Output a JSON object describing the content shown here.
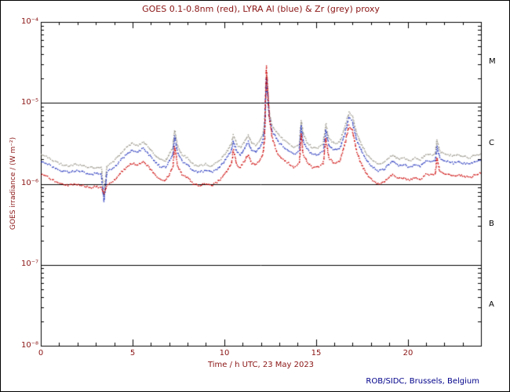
{
  "title": "GOES 0.1-0.8nm (red), LYRA Al (blue) & Zr (grey) proxy",
  "credit": "ROB/SIDC, Brussels, Belgium",
  "colors": {
    "text": "#8b1414",
    "credit": "#00008b",
    "frame": "#000000",
    "class_label": "#000000"
  },
  "axes": {
    "x_label": "Time / h UTC, 23 May 2023",
    "y_label": "GOES irradiance / (W m⁻²)",
    "x_ticks": [
      "0",
      "5",
      "10",
      "15",
      "20"
    ],
    "y_ticks": [
      "10⁻⁴",
      "10⁻⁵",
      "10⁻⁶",
      "10⁻⁷",
      "10⁻⁸"
    ],
    "class_labels": [
      "M",
      "C",
      "B",
      "A"
    ]
  },
  "chart_data": {
    "type": "scatter",
    "title": "GOES 0.1-0.8nm (red), LYRA Al (blue) & Zr (grey) proxy",
    "xlabel": "Time / h UTC, 23 May 2023",
    "ylabel": "GOES irradiance / (W m-2)",
    "xlim": [
      0,
      24
    ],
    "ylim": [
      1e-08,
      0.0001
    ],
    "ylog": true,
    "hlines": [
      1e-05,
      1e-06,
      1e-07
    ],
    "x_major_tick": 5,
    "x_minor_tick": 1,
    "x": [
      0.0,
      0.3,
      0.7,
      1.1,
      1.5,
      1.9,
      2.3,
      2.7,
      3.0,
      3.3,
      3.45,
      3.6,
      4.0,
      4.4,
      4.8,
      5.0,
      5.3,
      5.6,
      5.9,
      6.2,
      6.5,
      6.8,
      7.0,
      7.2,
      7.3,
      7.45,
      7.7,
      8.0,
      8.3,
      8.6,
      9.0,
      9.3,
      9.6,
      9.9,
      10.2,
      10.4,
      10.5,
      10.7,
      10.9,
      11.1,
      11.3,
      11.5,
      11.7,
      11.9,
      12.1,
      12.2,
      12.3,
      12.45,
      12.6,
      12.9,
      13.2,
      13.5,
      13.8,
      14.1,
      14.2,
      14.3,
      14.5,
      14.8,
      15.1,
      15.4,
      15.55,
      15.7,
      16.0,
      16.3,
      16.6,
      16.8,
      17.0,
      17.2,
      17.5,
      17.8,
      18.1,
      18.4,
      18.7,
      19.0,
      19.2,
      19.5,
      19.8,
      20.1,
      20.4,
      20.7,
      21.0,
      21.5,
      21.6,
      21.75,
      21.95,
      22.2,
      22.5,
      22.8,
      23.0,
      23.4,
      23.7,
      24.0
    ],
    "series": [
      {
        "name": "GOES 0.1-0.8nm",
        "color": "#cc0000",
        "values": [
          1.3e-06,
          1.25e-06,
          1.1e-06,
          1e-06,
          9.5e-07,
          1e-06,
          9.5e-07,
          9e-07,
          9.2e-07,
          9e-07,
          7.5e-07,
          9.5e-07,
          1.1e-06,
          1.4e-06,
          1.7e-06,
          1.8e-06,
          1.7e-06,
          1.9e-06,
          1.6e-06,
          1.3e-06,
          1.15e-06,
          1.1e-06,
          1.3e-06,
          1.6e-06,
          2.9e-06,
          1.7e-06,
          1.3e-06,
          1.2e-06,
          1e-06,
          9.5e-07,
          1e-06,
          9.5e-07,
          1.05e-06,
          1.2e-06,
          1.5e-06,
          1.8e-06,
          2.6e-06,
          1.7e-06,
          1.6e-06,
          1.9e-06,
          2.3e-06,
          1.8e-06,
          1.7e-06,
          1.9e-06,
          2.3e-06,
          3.5e-06,
          2.8e-05,
          7e-06,
          3.8e-06,
          2.4e-06,
          2e-06,
          1.8e-06,
          1.6e-06,
          1.8e-06,
          4.2e-06,
          2.4e-06,
          1.9e-06,
          1.6e-06,
          1.6e-06,
          1.8e-06,
          3.6e-06,
          2.1e-06,
          1.8e-06,
          1.9e-06,
          3.2e-06,
          5.2e-06,
          4.6e-06,
          2.6e-06,
          1.7e-06,
          1.3e-06,
          1.1e-06,
          1e-06,
          1.05e-06,
          1.2e-06,
          1.3e-06,
          1.15e-06,
          1.2e-06,
          1.1e-06,
          1.2e-06,
          1.15e-06,
          1.3e-06,
          1.3e-06,
          2.1e-06,
          1.45e-06,
          1.35e-06,
          1.3e-06,
          1.25e-06,
          1.3e-06,
          1.25e-06,
          1.2e-06,
          1.3e-06,
          1.35e-06
        ]
      },
      {
        "name": "LYRA Al",
        "color": "#2233bb",
        "values": [
          1.9e-06,
          1.8e-06,
          1.6e-06,
          1.45e-06,
          1.4e-06,
          1.45e-06,
          1.4e-06,
          1.3e-06,
          1.35e-06,
          1.3e-06,
          6e-07,
          1.4e-06,
          1.6e-06,
          2e-06,
          2.45e-06,
          2.6e-06,
          2.45e-06,
          2.75e-06,
          2.3e-06,
          1.9e-06,
          1.65e-06,
          1.6e-06,
          1.9e-06,
          2.3e-06,
          3.9e-06,
          2.45e-06,
          1.9e-06,
          1.75e-06,
          1.45e-06,
          1.4e-06,
          1.45e-06,
          1.4e-06,
          1.5e-06,
          1.75e-06,
          2.2e-06,
          2.6e-06,
          3.4e-06,
          2.45e-06,
          2.3e-06,
          2.75e-06,
          3.3e-06,
          2.6e-06,
          2.45e-06,
          2.75e-06,
          3.3e-06,
          4.8e-06,
          2e-05,
          6.8e-06,
          4.6e-06,
          3.4e-06,
          2.9e-06,
          2.6e-06,
          2.3e-06,
          2.6e-06,
          5.2e-06,
          3.4e-06,
          2.75e-06,
          2.3e-06,
          2.3e-06,
          2.6e-06,
          4.6e-06,
          3e-06,
          2.6e-06,
          2.75e-06,
          4.3e-06,
          6.6e-06,
          5.9e-06,
          3.6e-06,
          2.45e-06,
          1.9e-06,
          1.6e-06,
          1.45e-06,
          1.5e-06,
          1.75e-06,
          1.9e-06,
          1.65e-06,
          1.75e-06,
          1.6e-06,
          1.75e-06,
          1.65e-06,
          1.9e-06,
          1.9e-06,
          2.9e-06,
          2.1e-06,
          1.95e-06,
          1.9e-06,
          1.8e-06,
          1.9e-06,
          1.8e-06,
          1.75e-06,
          1.9e-06,
          1.95e-06
        ]
      },
      {
        "name": "LYRA Zr",
        "color": "#9a968a",
        "values": [
          2.3e-06,
          2.2e-06,
          1.9e-06,
          1.75e-06,
          1.65e-06,
          1.75e-06,
          1.65e-06,
          1.6e-06,
          1.6e-06,
          1.6e-06,
          7e-07,
          1.65e-06,
          1.9e-06,
          2.45e-06,
          3e-06,
          3.15e-06,
          3e-06,
          3.3e-06,
          2.8e-06,
          2.3e-06,
          2e-06,
          1.9e-06,
          2.3e-06,
          2.8e-06,
          4.6e-06,
          3e-06,
          2.3e-06,
          2.1e-06,
          1.75e-06,
          1.65e-06,
          1.75e-06,
          1.65e-06,
          1.85e-06,
          2.1e-06,
          2.6e-06,
          3.15e-06,
          4e-06,
          3e-06,
          2.8e-06,
          3.3e-06,
          4e-06,
          3.15e-06,
          3e-06,
          3.3e-06,
          4e-06,
          5.6e-06,
          2.2e-05,
          7.8e-06,
          5.3e-06,
          4.2e-06,
          3.5e-06,
          3.15e-06,
          2.8e-06,
          3.15e-06,
          6e-06,
          4.2e-06,
          3.3e-06,
          2.8e-06,
          2.8e-06,
          3.15e-06,
          5.5e-06,
          3.7e-06,
          3.15e-06,
          3.3e-06,
          5.2e-06,
          7.6e-06,
          6.9e-06,
          4.4e-06,
          3e-06,
          2.3e-06,
          1.9e-06,
          1.75e-06,
          1.85e-06,
          2.1e-06,
          2.3e-06,
          2e-06,
          2.1e-06,
          1.9e-06,
          2.1e-06,
          2e-06,
          2.3e-06,
          2.3e-06,
          3.5e-06,
          2.5e-06,
          2.35e-06,
          2.3e-06,
          2.2e-06,
          2.3e-06,
          2.2e-06,
          2.1e-06,
          2.3e-06,
          2.35e-06
        ]
      }
    ]
  }
}
